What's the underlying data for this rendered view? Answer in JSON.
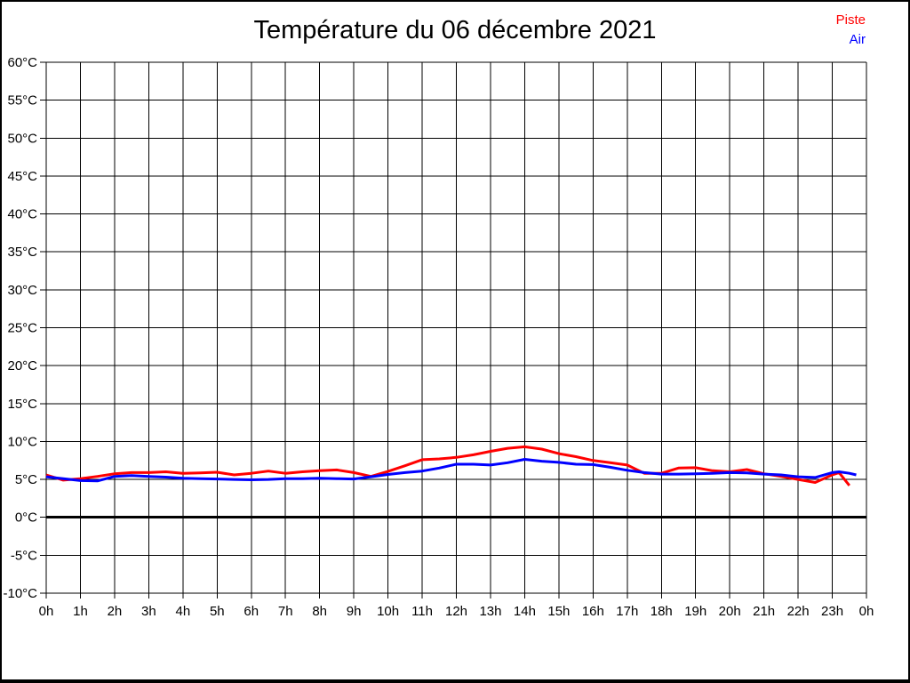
{
  "page": {
    "background": "#ffffff",
    "frame_color": "#000000"
  },
  "chart_data": {
    "type": "line",
    "title": "Température du 06 décembre 2021",
    "xlabel": "",
    "ylabel": "",
    "xlim": [
      0,
      24
    ],
    "ylim": [
      -10,
      60
    ],
    "x_tick_step_hours": 1,
    "y_tick_step_deg": 5,
    "grid": true,
    "grid_color": "#000000",
    "legend_position": "top-right",
    "x_tick_labels": [
      "0h",
      "1h",
      "2h",
      "3h",
      "4h",
      "5h",
      "6h",
      "7h",
      "8h",
      "9h",
      "10h",
      "11h",
      "12h",
      "13h",
      "14h",
      "15h",
      "16h",
      "17h",
      "18h",
      "19h",
      "20h",
      "21h",
      "22h",
      "23h",
      "0h"
    ],
    "y_tick_labels": [
      "60°C",
      "55°C",
      "50°C",
      "45°C",
      "40°C",
      "35°C",
      "30°C",
      "25°C",
      "20°C",
      "15°C",
      "10°C",
      "5°C",
      "0°C",
      "-5°C",
      "-10°C"
    ],
    "zero_line": {
      "value": 0,
      "color": "#000000",
      "width": 3
    },
    "series": [
      {
        "name": "Piste",
        "color": "#ff0000",
        "x": [
          0,
          0.5,
          1,
          1.5,
          2,
          2.5,
          3,
          3.5,
          4,
          4.5,
          5,
          5.5,
          6,
          6.5,
          7,
          7.5,
          8,
          8.5,
          9,
          9.5,
          10,
          10.5,
          11,
          11.5,
          12,
          12.5,
          13,
          13.5,
          14,
          14.5,
          15,
          15.5,
          16,
          16.5,
          17,
          17.5,
          18,
          18.5,
          19,
          19.5,
          20,
          20.5,
          21,
          21.5,
          22,
          22.5,
          23,
          23.2,
          23.5
        ],
        "values": [
          5.6,
          4.9,
          5.1,
          5.4,
          5.75,
          5.9,
          5.9,
          6.0,
          5.8,
          5.85,
          5.95,
          5.6,
          5.8,
          6.1,
          5.8,
          6.0,
          6.15,
          6.25,
          5.9,
          5.4,
          6.05,
          6.8,
          7.6,
          7.7,
          7.9,
          8.25,
          8.7,
          9.1,
          9.3,
          9.0,
          8.4,
          8.0,
          7.5,
          7.2,
          6.9,
          5.8,
          5.8,
          6.5,
          6.55,
          6.15,
          6.0,
          6.3,
          5.75,
          5.4,
          5.0,
          4.6,
          5.6,
          5.9,
          4.2
        ]
      },
      {
        "name": "Air",
        "color": "#0000ff",
        "x": [
          0,
          0.5,
          1,
          1.5,
          2,
          2.5,
          3,
          3.5,
          4,
          4.5,
          5,
          5.5,
          6,
          6.5,
          7,
          7.5,
          8,
          8.5,
          9,
          9.5,
          10,
          10.5,
          11,
          11.5,
          12,
          12.5,
          13,
          13.5,
          14,
          14.5,
          15,
          15.5,
          16,
          16.5,
          17,
          17.5,
          18,
          18.5,
          19,
          19.5,
          20,
          20.5,
          21,
          21.5,
          22,
          22.5,
          23,
          23.2,
          23.5,
          23.7
        ],
        "values": [
          5.35,
          5.1,
          4.85,
          4.8,
          5.4,
          5.5,
          5.4,
          5.3,
          5.15,
          5.1,
          5.05,
          5.0,
          4.95,
          5.0,
          5.1,
          5.1,
          5.15,
          5.1,
          5.05,
          5.35,
          5.65,
          5.9,
          6.1,
          6.5,
          7.0,
          7.0,
          6.9,
          7.2,
          7.65,
          7.4,
          7.25,
          7.0,
          6.95,
          6.6,
          6.2,
          5.9,
          5.7,
          5.7,
          5.75,
          5.8,
          5.9,
          5.85,
          5.7,
          5.6,
          5.35,
          5.25,
          5.9,
          6.0,
          5.8,
          5.6
        ]
      }
    ]
  }
}
